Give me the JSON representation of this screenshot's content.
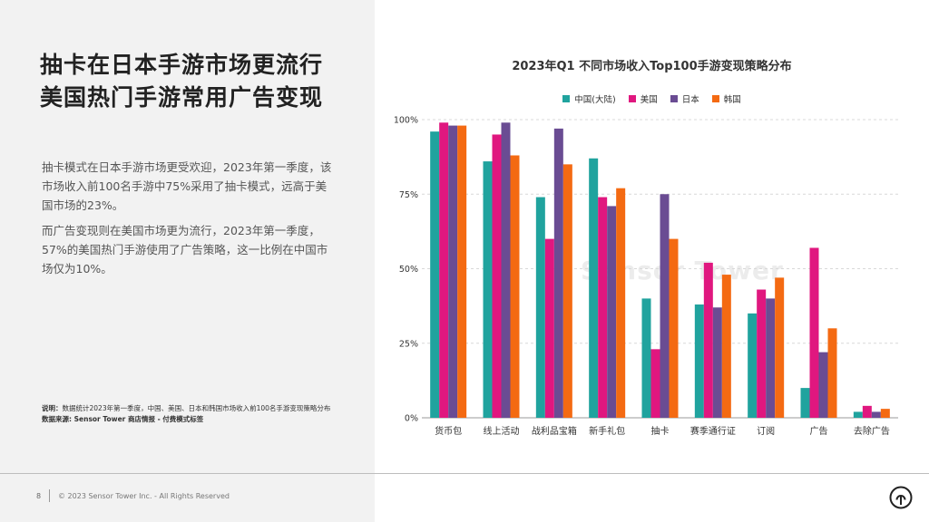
{
  "page": {
    "headline": [
      "抽卡在日本手游市场更流行",
      "美国热门手游常用广告变现"
    ],
    "paragraphs": [
      "抽卡模式在日本手游市场更受欢迎，2023年第一季度，该市场收入前100名手游中75%采用了抽卡模式，远高于美国市场的23%。",
      "而广告变现则在美国市场更为流行，2023年第一季度，57%的美国热门手游使用了广告策略，这一比例在中国市场仅为10%。"
    ],
    "note_label": "说明：",
    "note_text": "数据统计2023年第一季度，中国、美国、日本和韩国市场收入前100名手游变现策略分布",
    "source_text": "数据来源: Sensor Tower 商店情报 - 付费模式标签",
    "page_number": "8",
    "copyright": "© 2023 Sensor Tower Inc. - All Rights Reserved",
    "watermark": "Sensor Tower",
    "logo_icon": "sensor-tower-logo-icon"
  },
  "chart_data": {
    "type": "bar",
    "title": "2023年Q1 不同市场收入Top100手游变现策略分布",
    "categories": [
      "货币包",
      "线上活动",
      "战利品宝箱",
      "新手礼包",
      "抽卡",
      "赛季通行证",
      "订阅",
      "广告",
      "去除广告"
    ],
    "series": [
      {
        "name": "中国(大陆)",
        "color": "#20a39e",
        "values": [
          96,
          86,
          74,
          87,
          40,
          38,
          35,
          10,
          2
        ]
      },
      {
        "name": "美国",
        "color": "#e0177f",
        "values": [
          99,
          95,
          60,
          74,
          23,
          52,
          43,
          57,
          4
        ]
      },
      {
        "name": "日本",
        "color": "#6a4c93",
        "values": [
          98,
          99,
          97,
          71,
          75,
          37,
          40,
          22,
          2
        ]
      },
      {
        "name": "韩国",
        "color": "#f46a12",
        "values": [
          98,
          88,
          85,
          77,
          60,
          48,
          47,
          30,
          3
        ]
      }
    ],
    "ylim": [
      0,
      100
    ],
    "yticks": [
      "0%",
      "25%",
      "50%",
      "75%",
      "100%"
    ],
    "ytick_values": [
      0,
      25,
      50,
      75,
      100
    ],
    "grid": true,
    "legend_position": "top-center",
    "xlabel": "",
    "ylabel": ""
  }
}
